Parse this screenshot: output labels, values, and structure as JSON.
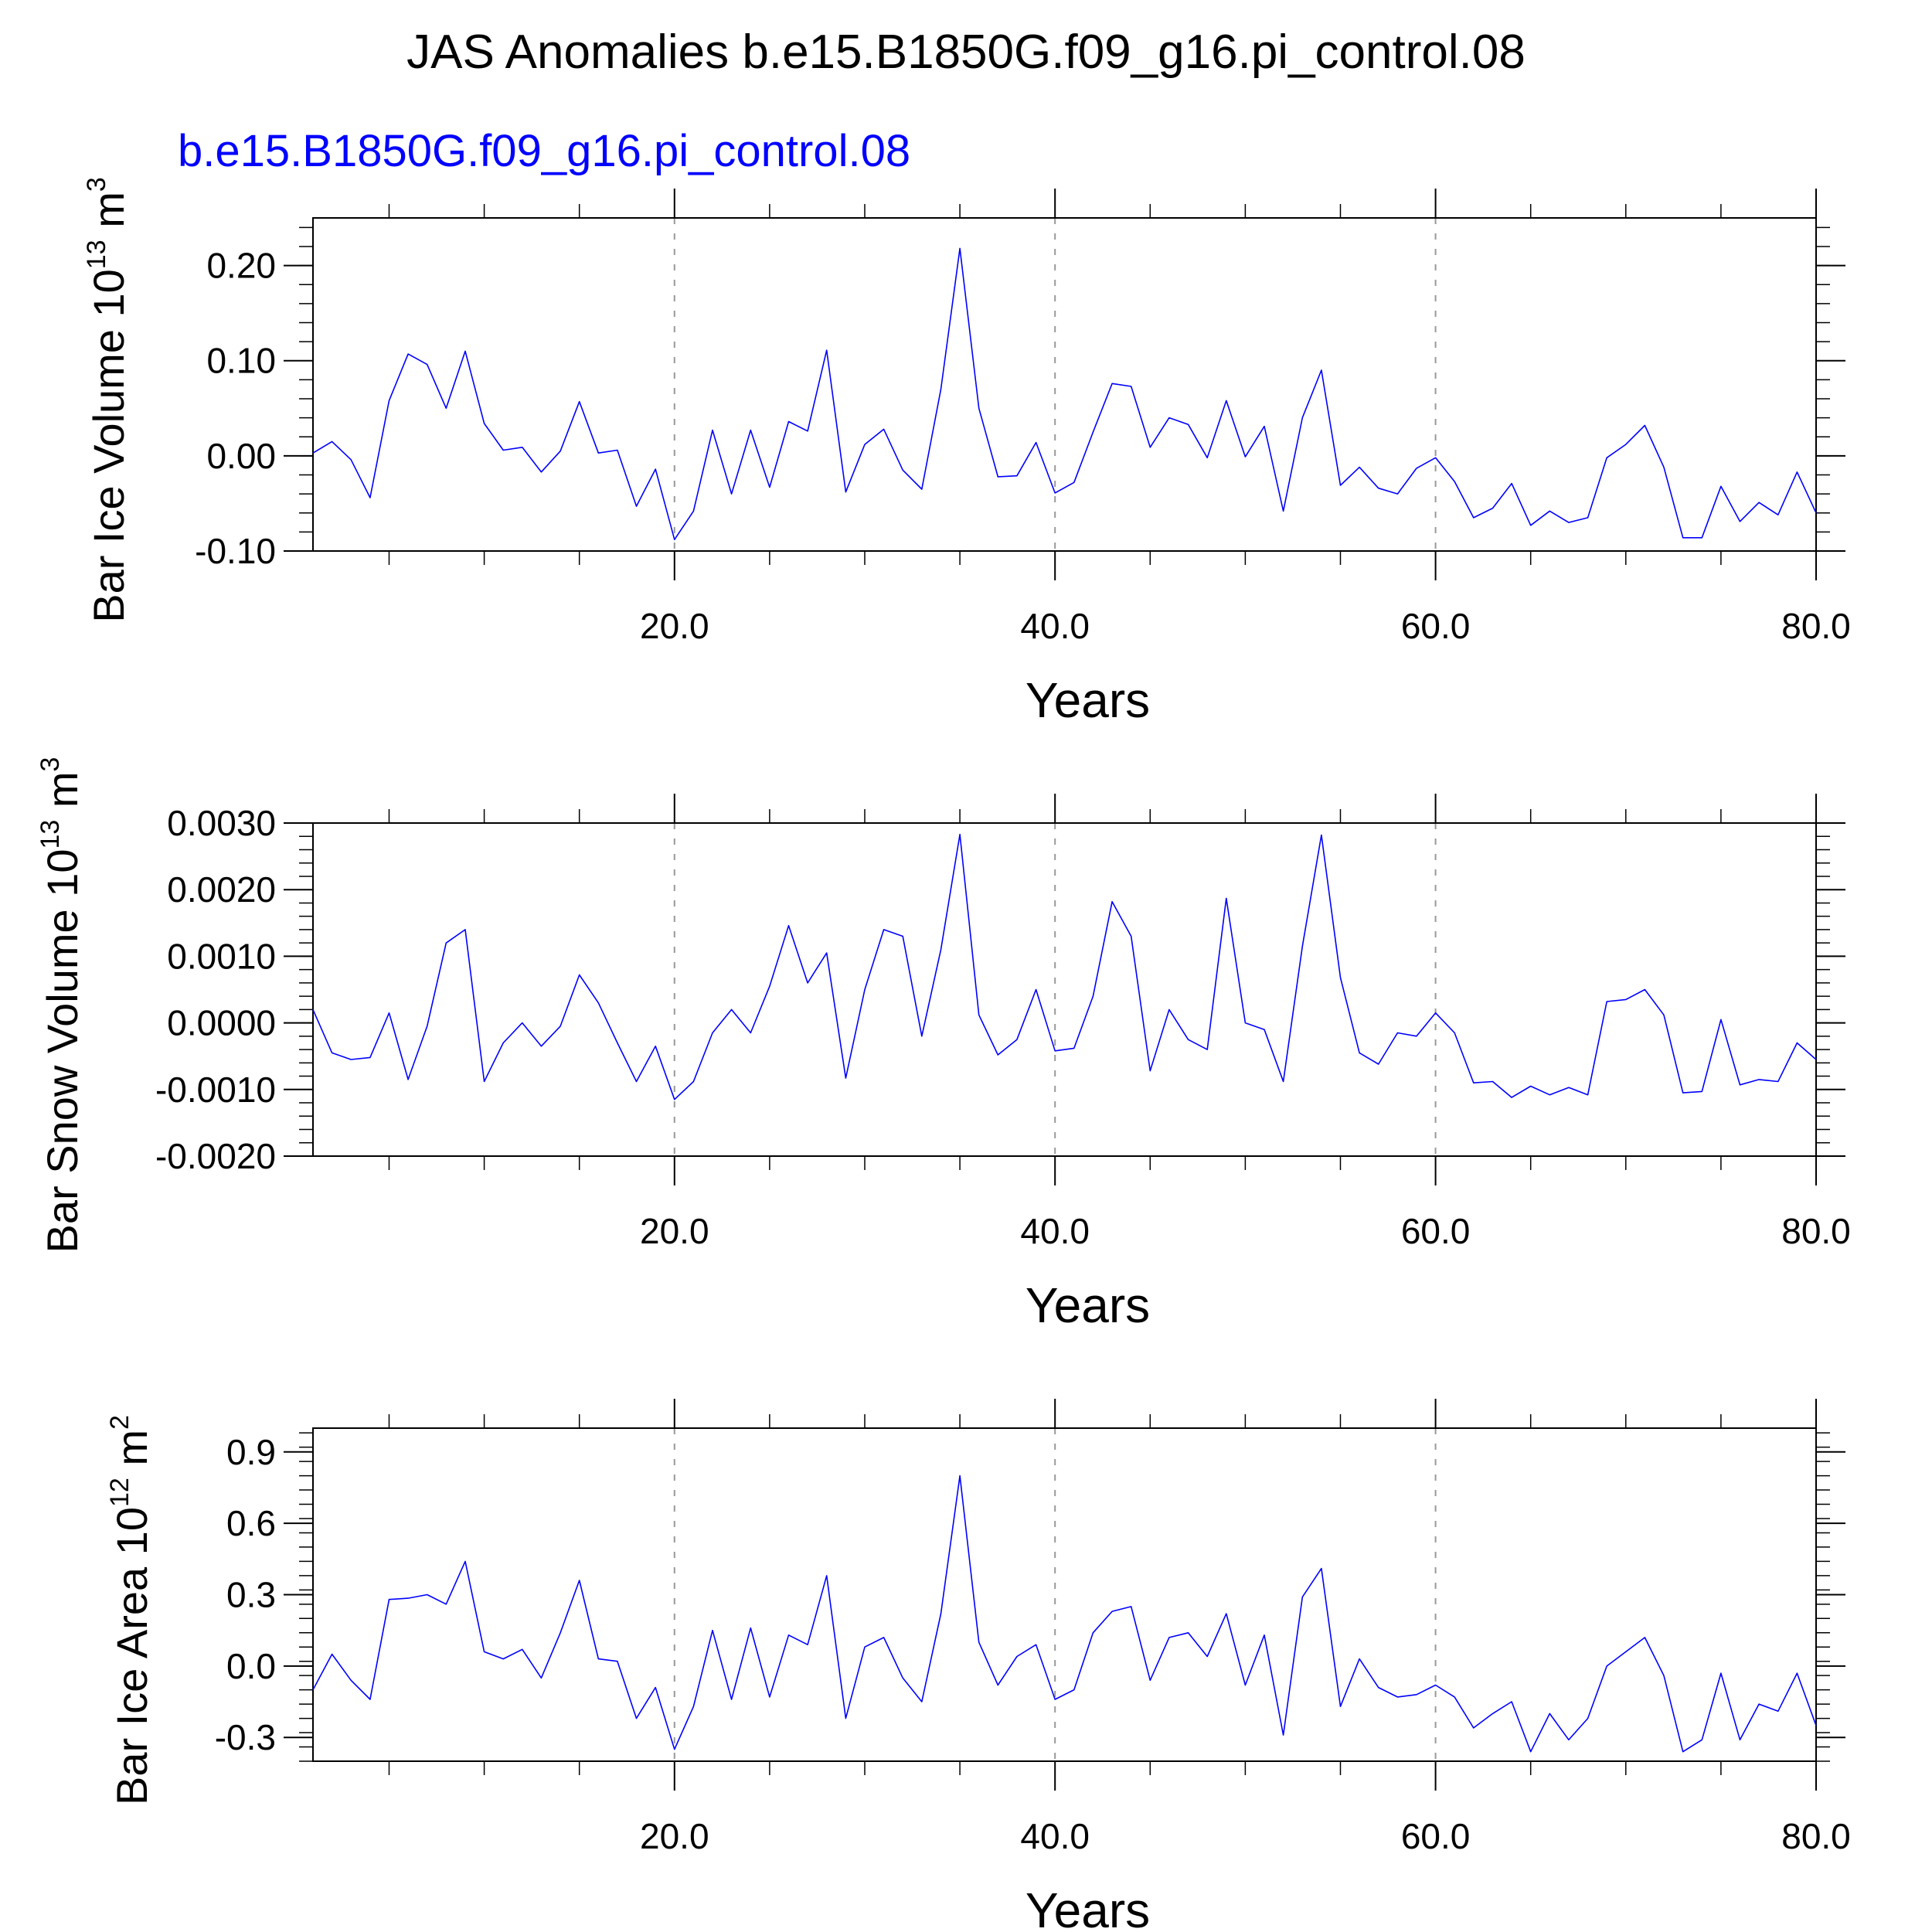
{
  "title": "JAS Anomalies b.e15.B1850G.f09_g16.pi_control.08",
  "series_label": "b.e15.B1850G.f09_g16.pi_control.08",
  "colors": {
    "series": "#0000ff",
    "grid": "#999999",
    "axis": "#000000"
  },
  "chart_data": [
    {
      "type": "line",
      "xlabel": "Years",
      "ylabel": {
        "text": "Bar Ice Volume 10",
        "sup": "13",
        "unit": "m",
        "unit_sup": "3"
      },
      "xlim": [
        1,
        80
      ],
      "ylim": [
        -0.1,
        0.25
      ],
      "xticks": [
        "20.0",
        "40.0",
        "60.0",
        "80.0"
      ],
      "yticks": [
        "-0.10",
        "0.00",
        "0.10",
        "0.20"
      ],
      "grid_x": [
        20,
        40,
        60
      ],
      "x": [
        1,
        2,
        3,
        4,
        5,
        6,
        7,
        8,
        9,
        10,
        11,
        12,
        13,
        14,
        15,
        16,
        17,
        18,
        19,
        20,
        21,
        22,
        23,
        24,
        25,
        26,
        27,
        28,
        29,
        30,
        31,
        32,
        33,
        34,
        35,
        36,
        37,
        38,
        39,
        40,
        41,
        42,
        43,
        44,
        45,
        46,
        47,
        48,
        49,
        50,
        51,
        52,
        53,
        54,
        55,
        56,
        57,
        58,
        59,
        60,
        61,
        62,
        63,
        64,
        65,
        66,
        67,
        68,
        69,
        70,
        71,
        72,
        73,
        74,
        75,
        76,
        77,
        78,
        79,
        80
      ],
      "series": [
        {
          "values": [
            0.003,
            0.015,
            -0.004,
            -0.044,
            0.058,
            0.107,
            0.096,
            0.05,
            0.11,
            0.034,
            0.006,
            0.009,
            -0.017,
            0.005,
            0.057,
            0.003,
            0.006,
            -0.053,
            -0.014,
            -0.088,
            -0.058,
            0.027,
            -0.04,
            0.027,
            -0.033,
            0.036,
            0.026,
            0.111,
            -0.038,
            0.012,
            0.028,
            -0.015,
            -0.035,
            0.07,
            0.218,
            0.05,
            -0.022,
            -0.021,
            0.014,
            -0.039,
            -0.028,
            0.025,
            0.076,
            0.073,
            0.009,
            0.04,
            0.033,
            -0.002,
            0.058,
            -0.001,
            0.031,
            -0.058,
            0.04,
            0.09,
            -0.031,
            -0.012,
            -0.034,
            -0.04,
            -0.013,
            -0.002,
            -0.027,
            -0.065,
            -0.055,
            -0.029,
            -0.073,
            -0.058,
            -0.07,
            -0.065,
            -0.002,
            0.012,
            0.032,
            -0.012,
            -0.086,
            -0.086,
            -0.032,
            -0.069,
            -0.049,
            -0.062,
            -0.017,
            -0.06
          ]
        }
      ]
    },
    {
      "type": "line",
      "xlabel": "Years",
      "ylabel": {
        "text": "Bar Snow Volume 10",
        "sup": "13",
        "unit": "m",
        "unit_sup": "3"
      },
      "xlim": [
        1,
        80
      ],
      "ylim": [
        -0.002,
        0.003
      ],
      "xticks": [
        "20.0",
        "40.0",
        "60.0",
        "80.0"
      ],
      "yticks": [
        "-0.0020",
        "-0.0010",
        "0.0000",
        "0.0010",
        "0.0020",
        "0.0030"
      ],
      "grid_x": [
        20,
        40,
        60
      ],
      "x": [
        1,
        2,
        3,
        4,
        5,
        6,
        7,
        8,
        9,
        10,
        11,
        12,
        13,
        14,
        15,
        16,
        17,
        18,
        19,
        20,
        21,
        22,
        23,
        24,
        25,
        26,
        27,
        28,
        29,
        30,
        31,
        32,
        33,
        34,
        35,
        36,
        37,
        38,
        39,
        40,
        41,
        42,
        43,
        44,
        45,
        46,
        47,
        48,
        49,
        50,
        51,
        52,
        53,
        54,
        55,
        56,
        57,
        58,
        59,
        60,
        61,
        62,
        63,
        64,
        65,
        66,
        67,
        68,
        69,
        70,
        71,
        72,
        73,
        74,
        75,
        76,
        77,
        78,
        79,
        80
      ],
      "series": [
        {
          "values": [
            0.0002,
            -0.00045,
            -0.00055,
            -0.00052,
            0.00015,
            -0.00085,
            -5e-05,
            0.0012,
            0.0014,
            -0.00088,
            -0.0003,
            0.0,
            -0.00035,
            -5e-05,
            0.00072,
            0.0003,
            -0.0003,
            -0.00088,
            -0.00035,
            -0.00115,
            -0.00088,
            -0.00015,
            0.0002,
            -0.00015,
            0.00055,
            0.00146,
            0.0006,
            0.00105,
            -0.00083,
            0.0005,
            0.0014,
            0.0013,
            -0.0002,
            0.0011,
            0.00283,
            0.00012,
            -0.00048,
            -0.00025,
            0.0005,
            -0.00042,
            -0.00038,
            0.0004,
            0.00182,
            0.0013,
            -0.00072,
            0.0002,
            -0.00025,
            -0.0004,
            0.00187,
            0.0,
            -0.0001,
            -0.00088,
            0.00115,
            0.00282,
            0.00068,
            -0.00045,
            -0.00062,
            -0.00015,
            -0.0002,
            0.00015,
            -0.00015,
            -0.0009,
            -0.00088,
            -0.00112,
            -0.00095,
            -0.00108,
            -0.00097,
            -0.00108,
            0.00032,
            0.00035,
            0.0005,
            0.00012,
            -0.00105,
            -0.00103,
            5e-05,
            -0.00093,
            -0.00085,
            -0.00088,
            -0.0003,
            -0.00055
          ]
        }
      ]
    },
    {
      "type": "line",
      "xlabel": "Years",
      "ylabel": {
        "text": "Bar Ice Area 10",
        "sup": "12",
        "unit": "m",
        "unit_sup": "2"
      },
      "xlim": [
        1,
        80
      ],
      "ylim": [
        -0.4,
        1.0
      ],
      "xticks": [
        "20.0",
        "40.0",
        "60.0",
        "80.0"
      ],
      "yticks": [
        "-0.3",
        "0.0",
        "0.3",
        "0.6",
        "0.9"
      ],
      "grid_x": [
        20,
        40,
        60
      ],
      "x": [
        1,
        2,
        3,
        4,
        5,
        6,
        7,
        8,
        9,
        10,
        11,
        12,
        13,
        14,
        15,
        16,
        17,
        18,
        19,
        20,
        21,
        22,
        23,
        24,
        25,
        26,
        27,
        28,
        29,
        30,
        31,
        32,
        33,
        34,
        35,
        36,
        37,
        38,
        39,
        40,
        41,
        42,
        43,
        44,
        45,
        46,
        47,
        48,
        49,
        50,
        51,
        52,
        53,
        54,
        55,
        56,
        57,
        58,
        59,
        60,
        61,
        62,
        63,
        64,
        65,
        66,
        67,
        68,
        69,
        70,
        71,
        72,
        73,
        74,
        75,
        76,
        77,
        78,
        79,
        80
      ],
      "series": [
        {
          "values": [
            -0.1,
            0.05,
            -0.06,
            -0.14,
            0.28,
            0.285,
            0.3,
            0.26,
            0.44,
            0.06,
            0.03,
            0.07,
            -0.05,
            0.14,
            0.36,
            0.03,
            0.02,
            -0.22,
            -0.09,
            -0.35,
            -0.17,
            0.15,
            -0.14,
            0.16,
            -0.13,
            0.13,
            0.09,
            0.38,
            -0.22,
            0.08,
            0.12,
            -0.05,
            -0.15,
            0.22,
            0.8,
            0.1,
            -0.08,
            0.04,
            0.09,
            -0.14,
            -0.1,
            0.14,
            0.23,
            0.25,
            -0.06,
            0.12,
            0.14,
            0.04,
            0.22,
            -0.08,
            0.13,
            -0.29,
            0.29,
            0.41,
            -0.17,
            0.03,
            -0.09,
            -0.13,
            -0.12,
            -0.08,
            -0.13,
            -0.26,
            -0.2,
            -0.15,
            -0.36,
            -0.2,
            -0.31,
            -0.22,
            0.0,
            0.06,
            0.12,
            -0.04,
            -0.36,
            -0.31,
            -0.03,
            -0.31,
            -0.16,
            -0.19,
            -0.03,
            -0.25
          ]
        }
      ]
    }
  ]
}
